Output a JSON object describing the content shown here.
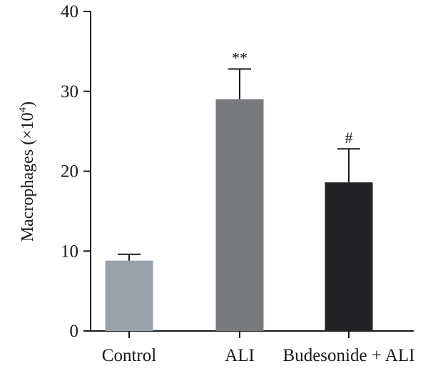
{
  "chart_data": {
    "type": "bar",
    "title": "",
    "ylabel": "Macrophages (×10",
    "ylabel_sup": "4",
    "ylabel_close": ")",
    "xlabel": "",
    "ylim": [
      0,
      40
    ],
    "yticks": [
      0,
      10,
      20,
      30,
      40
    ],
    "categories": [
      "Control",
      "ALI",
      "Budesonide + ALI"
    ],
    "values": [
      8.8,
      29.0,
      18.6
    ],
    "errors": [
      0.8,
      3.8,
      4.2
    ],
    "annotations": [
      "",
      "**",
      "#"
    ],
    "colors": [
      "#9aa1ab",
      "#78797d",
      "#222123"
    ],
    "grid": false
  }
}
